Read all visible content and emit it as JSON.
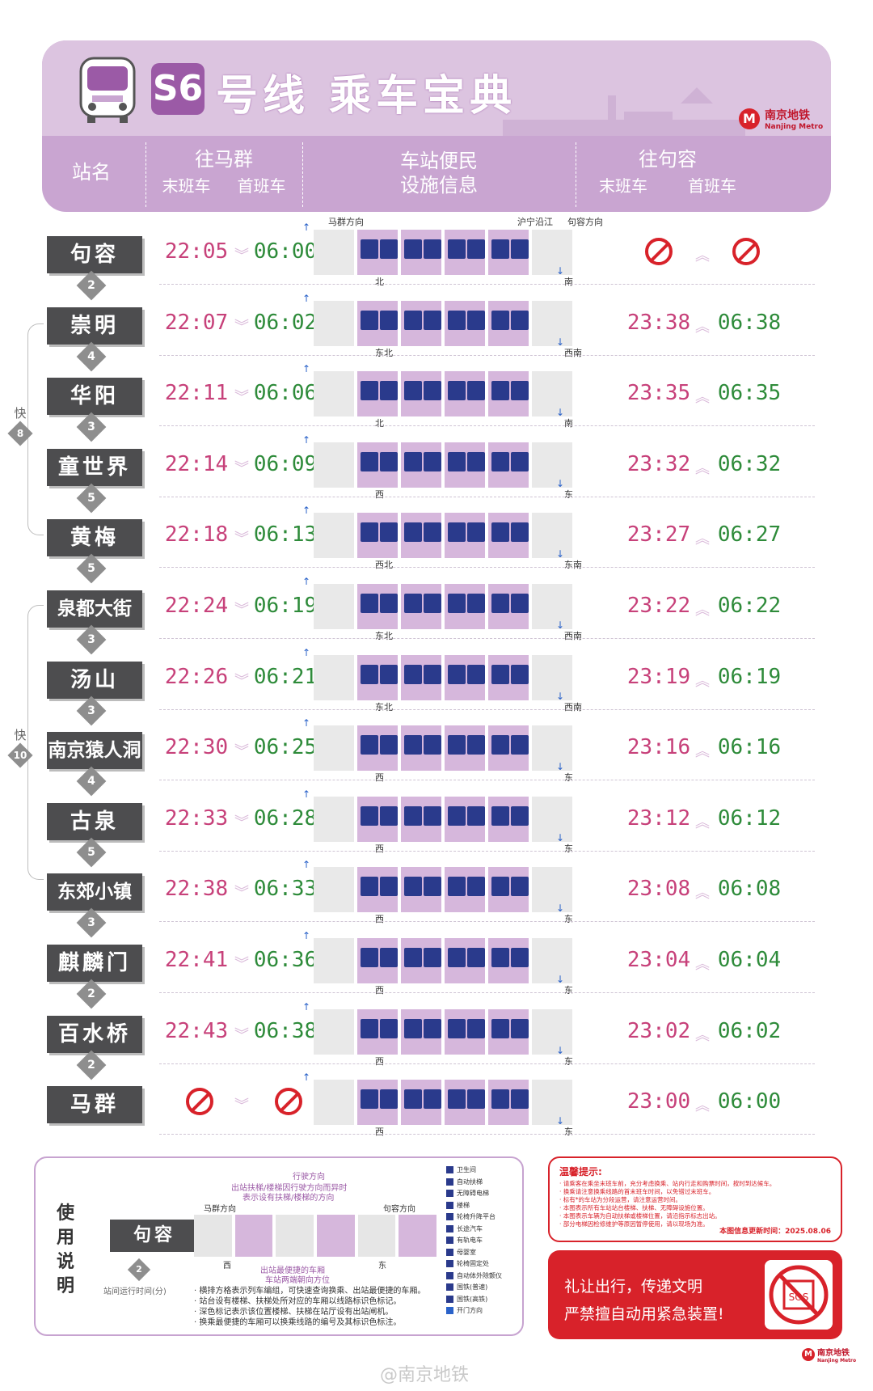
{
  "header": {
    "line_badge": "S6",
    "title": "号线 乘车宝典",
    "logo_cn": "南京地铁",
    "logo_en": "Nanjing Metro",
    "col_station": "站名",
    "col_to_maqun": "往马群",
    "col_facilities_1": "车站便民",
    "col_facilities_2": "设施信息",
    "col_to_jurong": "往句容",
    "last_train": "末班车",
    "first_train": "首班车"
  },
  "direction_labels": {
    "maqun_dir": "马群方向",
    "hning": "沪宁沿江",
    "jurong_dir": "句容方向"
  },
  "stations": [
    {
      "name": "句容",
      "mq_last": "22:05",
      "mq_first": "06:00",
      "jr_last": "",
      "jr_first": "",
      "jr_none": true,
      "interval": "2",
      "side": "北",
      "side2": "南"
    },
    {
      "name": "崇明",
      "mq_last": "22:07",
      "mq_first": "06:02",
      "jr_last": "23:38",
      "jr_first": "06:38",
      "interval": "4",
      "side": "东北",
      "side2": "西南"
    },
    {
      "name": "华阳",
      "mq_last": "22:11",
      "mq_first": "06:06",
      "jr_last": "23:35",
      "jr_first": "06:35",
      "interval": "3",
      "side": "北",
      "side2": "南"
    },
    {
      "name": "童世界",
      "mq_last": "22:14",
      "mq_first": "06:09",
      "jr_last": "23:32",
      "jr_first": "06:32",
      "interval": "5",
      "side": "西",
      "side2": "东"
    },
    {
      "name": "黄梅",
      "mq_last": "22:18",
      "mq_first": "06:13",
      "jr_last": "23:27",
      "jr_first": "06:27",
      "interval": "5",
      "side": "西北",
      "side2": "东南"
    },
    {
      "name": "泉都大街",
      "mq_last": "22:24",
      "mq_first": "06:19",
      "jr_last": "23:22",
      "jr_first": "06:22",
      "interval": "3",
      "side": "东北",
      "side2": "西南"
    },
    {
      "name": "汤山",
      "mq_last": "22:26",
      "mq_first": "06:21",
      "jr_last": "23:19",
      "jr_first": "06:19",
      "interval": "3",
      "side": "东北",
      "side2": "西南"
    },
    {
      "name": "南京猿人洞",
      "mq_last": "22:30",
      "mq_first": "06:25",
      "jr_last": "23:16",
      "jr_first": "06:16",
      "interval": "4",
      "side": "西",
      "side2": "东"
    },
    {
      "name": "古泉",
      "mq_last": "22:33",
      "mq_first": "06:28",
      "jr_last": "23:12",
      "jr_first": "06:12",
      "interval": "5",
      "side": "西",
      "side2": "东"
    },
    {
      "name": "东郊小镇",
      "mq_last": "22:38",
      "mq_first": "06:33",
      "jr_last": "23:08",
      "jr_first": "06:08",
      "interval": "3",
      "side": "西",
      "side2": "东"
    },
    {
      "name": "麒麟门",
      "mq_last": "22:41",
      "mq_first": "06:36",
      "jr_last": "23:04",
      "jr_first": "06:04",
      "interval": "2",
      "side": "西",
      "side2": "东"
    },
    {
      "name": "百水桥",
      "mq_last": "22:43",
      "mq_first": "06:38",
      "jr_last": "23:02",
      "jr_first": "06:02",
      "interval": "2",
      "side": "西",
      "side2": "东"
    },
    {
      "name": "马群",
      "mq_last": "",
      "mq_first": "",
      "mq_none": true,
      "jr_last": "23:00",
      "jr_first": "06:00",
      "interval": "",
      "side": "西",
      "side2": "东"
    }
  ],
  "express": [
    {
      "label": "快",
      "num": "8"
    },
    {
      "label": "快",
      "num": "10"
    }
  ],
  "guide": {
    "title": "使用说明",
    "station": "句容",
    "interval": "2",
    "interval_label": "站间运行时间(分)",
    "travel_dir": "行驶方向",
    "note_top": "出站扶梯/楼梯因行驶方向而异时",
    "note_top2": "表示设有扶梯/楼梯的方向",
    "maqun_dir": "马群方向",
    "jurong_dir": "句容方向",
    "west": "西",
    "east": "东",
    "best_car": "出站最便捷的车厢",
    "platform_side": "车站两端朝向方位",
    "notes": [
      "· 横排方格表示列车编组，可快速查询换乘、出站最便捷的车厢。",
      "· 站台设有楼梯、扶梯处所对应的车厢以线路标识色标记。",
      "· 深色标记表示该位置楼梯、扶梯在站厅设有出站闸机。",
      "· 换乘最便捷的车厢可以换乘线路的编号及其标识色标注。"
    ],
    "legend": [
      "卫生间",
      "自动扶梯",
      "无障碍电梯",
      "楼梯",
      "轮椅升降平台",
      "长途汽车",
      "有轨电车",
      "母婴室",
      "轮椅固定处",
      "自动体外除颤仪",
      "国铁(普速)",
      "国铁(高铁)",
      "开门方向"
    ]
  },
  "tips": {
    "title": "温馨提示:",
    "lines": [
      "· 请乘客在乘坐末班车前，充分考虑换乘、站内行走和购票时间，按时到达候车。",
      "· 换乘请注意换乘线路的首末班车时间，以免错过末班车。",
      "· 标有*的车站为分段运营，请注意运营时间。",
      "· 本图表示所有车站站台楼梯、扶梯、无障碍设施位置。",
      "· 本图表示车辆为自动扶梯或楼梯位置，请沿指示标志出站。",
      "· 部分电梯因检修维护等原因暂停使用，请以现场为准。"
    ],
    "date": "本图信息更新时间：2025.08.06"
  },
  "warning": {
    "line1": "礼让出行，传递文明",
    "line2": "严禁擅自动用紧急装置!"
  },
  "footer": {
    "weibo": "@南京地铁",
    "logo_cn": "南京地铁",
    "logo_en": "Nanjing Metro"
  },
  "colors": {
    "line": "#c9a5d1",
    "accent": "#9b5aa6",
    "last": "#c7417a",
    "first": "#2e8b3a",
    "red": "#d8222a"
  }
}
